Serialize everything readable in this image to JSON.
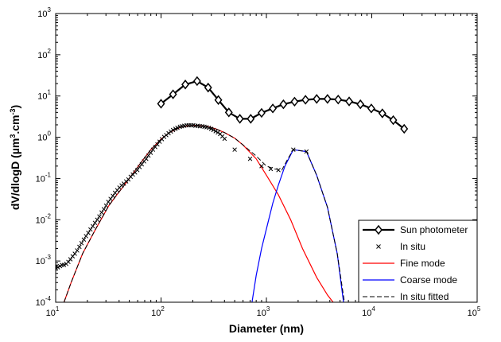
{
  "chart_data": {
    "type": "line",
    "title": "",
    "xlabel": "Diameter (nm)",
    "ylabel": {
      "prefix": "dV/dlogD (",
      "unit1": "µm",
      "exp1": "3",
      "mid": ".cm",
      "exp2": "-3",
      "suffix": ")"
    },
    "xscale": "log",
    "yscale": "log",
    "xlim": [
      10,
      100000
    ],
    "ylim": [
      0.0001,
      1000
    ],
    "x_ticks": [
      {
        "base": "10",
        "exp": "1"
      },
      {
        "base": "10",
        "exp": "2"
      },
      {
        "base": "10",
        "exp": "3"
      },
      {
        "base": "10",
        "exp": "4"
      },
      {
        "base": "10",
        "exp": "5"
      }
    ],
    "y_ticks": [
      {
        "base": "10",
        "exp": "-4"
      },
      {
        "base": "10",
        "exp": "-3"
      },
      {
        "base": "10",
        "exp": "-2"
      },
      {
        "base": "10",
        "exp": "-1"
      },
      {
        "base": "10",
        "exp": "0"
      },
      {
        "base": "10",
        "exp": "1"
      },
      {
        "base": "10",
        "exp": "2"
      },
      {
        "base": "10",
        "exp": "3"
      }
    ],
    "grid": false,
    "legend_position": "bottom-right",
    "series": [
      {
        "name": "Sun photometer",
        "color": "#000000",
        "style": "thick-line-diamond",
        "x": [
          100,
          130,
          170,
          220,
          280,
          350,
          440,
          560,
          710,
          900,
          1150,
          1450,
          1850,
          2350,
          3000,
          3800,
          4800,
          6100,
          7800,
          9900,
          12600,
          16000,
          20300
        ],
        "y": [
          6.5,
          11,
          19,
          23,
          16,
          8,
          4,
          2.8,
          2.8,
          3.9,
          5,
          6.3,
          7.3,
          8.1,
          8.5,
          8.5,
          8.2,
          7.4,
          6.3,
          5,
          3.8,
          2.6,
          1.6
        ]
      },
      {
        "name": "In situ",
        "color": "#000000",
        "style": "x-markers",
        "x": [
          10,
          10.5,
          11,
          11.5,
          12,
          12.6,
          13.2,
          13.8,
          14.5,
          15.2,
          16,
          16.8,
          17.6,
          18.5,
          19.4,
          20.4,
          21.4,
          22.5,
          23.6,
          24.8,
          26,
          27.3,
          28.7,
          30.1,
          31.6,
          33.2,
          34.9,
          36.6,
          38.4,
          40.3,
          42.3,
          44.4,
          46.7,
          49,
          51.5,
          54,
          56.7,
          59.6,
          62.6,
          65.7,
          69,
          72.4,
          76,
          79.8,
          83.8,
          88,
          92.4,
          97,
          102,
          107,
          112,
          118,
          124,
          130,
          137,
          143,
          151,
          158,
          166,
          175,
          183,
          193,
          202,
          212,
          223,
          234,
          246,
          258,
          271,
          285,
          299,
          314,
          330,
          346,
          364,
          382,
          401,
          500,
          700,
          900,
          1100,
          1300,
          1800,
          2400
        ],
        "y": [
          0.0007,
          0.0007,
          0.00075,
          0.0008,
          0.0008,
          0.00085,
          0.00095,
          0.0011,
          0.0013,
          0.0015,
          0.0018,
          0.0022,
          0.0027,
          0.0033,
          0.004,
          0.0048,
          0.0058,
          0.007,
          0.0084,
          0.01,
          0.012,
          0.015,
          0.018,
          0.022,
          0.027,
          0.032,
          0.038,
          0.045,
          0.052,
          0.06,
          0.068,
          0.075,
          0.085,
          0.095,
          0.11,
          0.125,
          0.14,
          0.16,
          0.19,
          0.22,
          0.26,
          0.3,
          0.36,
          0.42,
          0.5,
          0.58,
          0.67,
          0.78,
          0.9,
          1.02,
          1.13,
          1.25,
          1.38,
          1.5,
          1.6,
          1.7,
          1.8,
          1.85,
          1.9,
          1.95,
          1.95,
          1.95,
          1.95,
          1.9,
          1.9,
          1.85,
          1.85,
          1.8,
          1.75,
          1.7,
          1.6,
          1.5,
          1.4,
          1.3,
          1.2,
          1.05,
          0.92,
          0.5,
          0.3,
          0.2,
          0.17,
          0.16,
          0.5,
          0.45
        ]
      },
      {
        "name": "Fine mode",
        "color": "#ff0000",
        "style": "thin-line",
        "x": [
          12,
          14,
          16,
          18,
          20,
          24,
          28,
          32,
          38,
          45,
          55,
          65,
          80,
          100,
          120,
          150,
          180,
          220,
          270,
          330,
          400,
          500,
          600,
          800,
          1000,
          1300,
          1700,
          2200,
          3000,
          3800,
          4300
        ],
        "y": [
          0.0001,
          0.0003,
          0.0007,
          0.0015,
          0.0025,
          0.006,
          0.012,
          0.022,
          0.04,
          0.07,
          0.14,
          0.25,
          0.5,
          0.9,
          1.3,
          1.7,
          1.9,
          1.95,
          1.85,
          1.6,
          1.3,
          0.95,
          0.65,
          0.3,
          0.12,
          0.04,
          0.01,
          0.002,
          0.0004,
          0.00015,
          0.0001
        ]
      },
      {
        "name": "Coarse mode",
        "color": "#0000ff",
        "style": "thin-line",
        "x": [
          730,
          800,
          900,
          1000,
          1150,
          1300,
          1500,
          1800,
          2400,
          3000,
          3800,
          4700,
          5400
        ],
        "y": [
          0.0001,
          0.00045,
          0.002,
          0.006,
          0.025,
          0.07,
          0.2,
          0.5,
          0.45,
          0.12,
          0.02,
          0.0015,
          0.0001
        ]
      },
      {
        "name": "In situ fitted",
        "color": "#000000",
        "style": "dashed-line",
        "x": [
          12,
          14,
          16,
          18,
          20,
          24,
          28,
          32,
          38,
          45,
          55,
          65,
          80,
          100,
          120,
          150,
          180,
          220,
          270,
          330,
          400,
          500,
          600,
          800,
          1000,
          1200,
          1400,
          1600,
          1800,
          2400,
          3000,
          3800,
          4700,
          5500
        ],
        "y": [
          0.0001,
          0.0003,
          0.0007,
          0.0015,
          0.0025,
          0.006,
          0.012,
          0.022,
          0.04,
          0.07,
          0.14,
          0.25,
          0.5,
          0.9,
          1.3,
          1.7,
          1.9,
          1.95,
          1.85,
          1.6,
          1.3,
          0.95,
          0.65,
          0.35,
          0.2,
          0.17,
          0.16,
          0.3,
          0.5,
          0.45,
          0.12,
          0.02,
          0.0015,
          0.0001
        ]
      }
    ]
  }
}
